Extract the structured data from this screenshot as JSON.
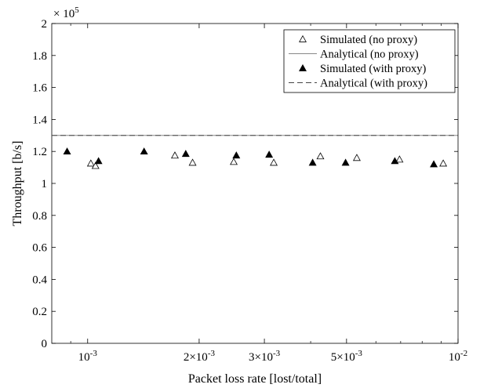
{
  "chart_data": {
    "type": "scatter",
    "xscale": "log",
    "xlim": [
      0.0008,
      0.01
    ],
    "ylim": [
      0,
      200000
    ],
    "ylabel": "Throughput [b/s]",
    "xlabel": "Packet loss rate [lost/total]",
    "y_multiplier_label": "× 10^5",
    "y_ticks": [
      {
        "value": 0,
        "label": "0"
      },
      {
        "value": 20000,
        "label": "0.2"
      },
      {
        "value": 40000,
        "label": "0.4"
      },
      {
        "value": 60000,
        "label": "0.6"
      },
      {
        "value": 80000,
        "label": "0.8"
      },
      {
        "value": 100000,
        "label": "1"
      },
      {
        "value": 120000,
        "label": "1.2"
      },
      {
        "value": 140000,
        "label": "1.4"
      },
      {
        "value": 160000,
        "label": "1.6"
      },
      {
        "value": 180000,
        "label": "1.8"
      },
      {
        "value": 200000,
        "label": "2"
      }
    ],
    "x_ticks": [
      {
        "value": 0.001,
        "mantissa": "",
        "exponent": "-3"
      },
      {
        "value": 0.002,
        "mantissa": "2×",
        "exponent": "-3"
      },
      {
        "value": 0.003,
        "mantissa": "3×",
        "exponent": "-3"
      },
      {
        "value": 0.005,
        "mantissa": "5×",
        "exponent": "-3"
      },
      {
        "value": 0.01,
        "mantissa": "",
        "exponent": "-2"
      }
    ],
    "x_minor_ticks": [
      0.0009,
      0.004,
      0.006,
      0.007,
      0.008,
      0.009
    ],
    "legend_position": "top-right",
    "series": [
      {
        "name": "Simulated (no proxy)",
        "style": "open-triangle",
        "points": [
          {
            "x": 0.00102,
            "y": 112500
          },
          {
            "x": 0.00105,
            "y": 111000
          },
          {
            "x": 0.00172,
            "y": 117500
          },
          {
            "x": 0.00192,
            "y": 113000
          },
          {
            "x": 0.00248,
            "y": 113500
          },
          {
            "x": 0.00318,
            "y": 113000
          },
          {
            "x": 0.00425,
            "y": 117000
          },
          {
            "x": 0.00533,
            "y": 116000
          },
          {
            "x": 0.00695,
            "y": 115000
          },
          {
            "x": 0.00912,
            "y": 112500
          }
        ]
      },
      {
        "name": "Analytical (no proxy)",
        "style": "solid-line",
        "y": 130000
      },
      {
        "name": "Simulated (with proxy)",
        "style": "filled-triangle",
        "points": [
          {
            "x": 0.00088,
            "y": 120000
          },
          {
            "x": 0.00107,
            "y": 114000
          },
          {
            "x": 0.00142,
            "y": 120000
          },
          {
            "x": 0.00184,
            "y": 118500
          },
          {
            "x": 0.00252,
            "y": 117500
          },
          {
            "x": 0.00309,
            "y": 118000
          },
          {
            "x": 0.00405,
            "y": 113000
          },
          {
            "x": 0.00497,
            "y": 113000
          },
          {
            "x": 0.00675,
            "y": 114000
          },
          {
            "x": 0.0086,
            "y": 112000
          }
        ]
      },
      {
        "name": "Analytical (with proxy)",
        "style": "dashed-line",
        "y": 130000
      }
    ]
  }
}
